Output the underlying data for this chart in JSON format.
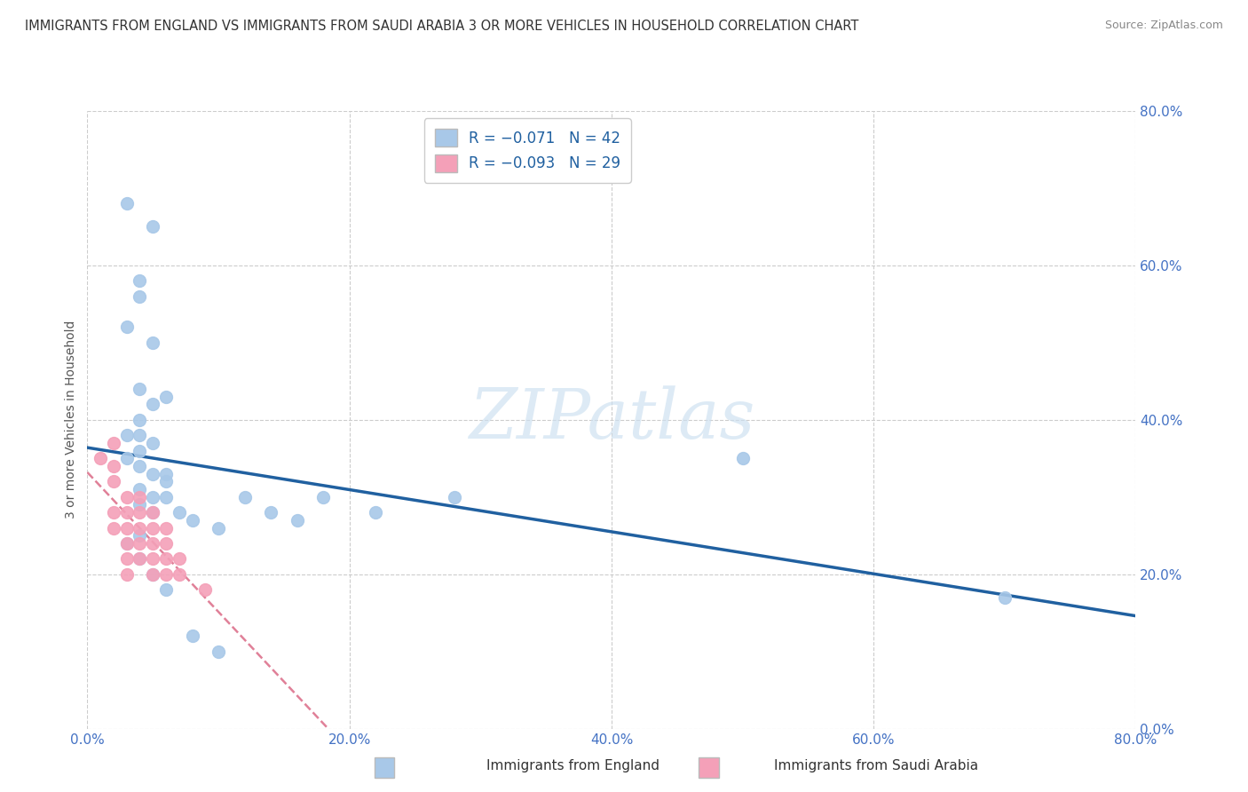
{
  "title": "IMMIGRANTS FROM ENGLAND VS IMMIGRANTS FROM SAUDI ARABIA 3 OR MORE VEHICLES IN HOUSEHOLD CORRELATION CHART",
  "source": "Source: ZipAtlas.com",
  "ylabel": "3 or more Vehicles in Household",
  "legend_bottom": [
    "Immigrants from England",
    "Immigrants from Saudi Arabia"
  ],
  "england_R": -0.071,
  "england_N": 42,
  "saudi_R": -0.093,
  "saudi_N": 29,
  "xlim": [
    0.0,
    0.8
  ],
  "ylim": [
    0.0,
    0.8
  ],
  "england_color": "#a8c8e8",
  "saudi_color": "#f4a0b8",
  "england_line_color": "#2060a0",
  "saudi_line_color": "#e08098",
  "watermark": "ZIPatlas",
  "background_color": "#ffffff",
  "grid_color": "#cccccc",
  "england_x": [
    0.03,
    0.05,
    0.04,
    0.04,
    0.03,
    0.05,
    0.04,
    0.06,
    0.05,
    0.04,
    0.03,
    0.04,
    0.05,
    0.04,
    0.03,
    0.04,
    0.05,
    0.06,
    0.06,
    0.04,
    0.05,
    0.06,
    0.04,
    0.05,
    0.07,
    0.08,
    0.1,
    0.12,
    0.14,
    0.16,
    0.18,
    0.22,
    0.28,
    0.5,
    0.7,
    0.04,
    0.03,
    0.04,
    0.05,
    0.06,
    0.08,
    0.1
  ],
  "england_y": [
    0.68,
    0.65,
    0.58,
    0.56,
    0.52,
    0.5,
    0.44,
    0.43,
    0.42,
    0.4,
    0.38,
    0.38,
    0.37,
    0.36,
    0.35,
    0.34,
    0.33,
    0.33,
    0.32,
    0.31,
    0.3,
    0.3,
    0.29,
    0.28,
    0.28,
    0.27,
    0.26,
    0.3,
    0.28,
    0.27,
    0.3,
    0.28,
    0.3,
    0.35,
    0.17,
    0.25,
    0.24,
    0.22,
    0.2,
    0.18,
    0.12,
    0.1
  ],
  "saudi_x": [
    0.01,
    0.02,
    0.02,
    0.02,
    0.02,
    0.02,
    0.03,
    0.03,
    0.03,
    0.03,
    0.03,
    0.03,
    0.04,
    0.04,
    0.04,
    0.04,
    0.04,
    0.05,
    0.05,
    0.05,
    0.05,
    0.05,
    0.06,
    0.06,
    0.06,
    0.06,
    0.07,
    0.07,
    0.09
  ],
  "saudi_y": [
    0.35,
    0.37,
    0.34,
    0.32,
    0.28,
    0.26,
    0.3,
    0.28,
    0.26,
    0.24,
    0.22,
    0.2,
    0.3,
    0.28,
    0.26,
    0.24,
    0.22,
    0.28,
    0.26,
    0.24,
    0.22,
    0.2,
    0.26,
    0.24,
    0.22,
    0.2,
    0.22,
    0.2,
    0.18
  ]
}
